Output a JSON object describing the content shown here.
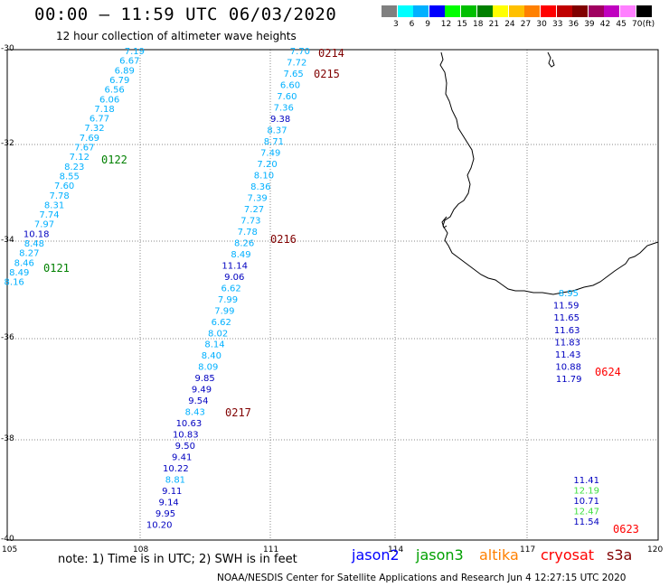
{
  "header": {
    "title": "00:00 – 11:59 UTC 06/03/2020",
    "subtitle": "12 hour collection of altimeter wave heights"
  },
  "legend": {
    "unit": "(ft)",
    "colors": [
      "#808080",
      "#00ffff",
      "#00b0ff",
      "#0000ff",
      "#00ff00",
      "#00c000",
      "#008000",
      "#ffff00",
      "#ffc000",
      "#ff8000",
      "#ff0000",
      "#c00000",
      "#800000",
      "#a00060",
      "#c000c0",
      "#ff80ff",
      "#000000"
    ],
    "labels": [
      "3",
      "6",
      "9",
      "12",
      "15",
      "18",
      "21",
      "24",
      "27",
      "30",
      "33",
      "36",
      "39",
      "42",
      "45",
      "70"
    ]
  },
  "axes": {
    "lon_labels": [
      "105",
      "108",
      "111",
      "114",
      "117",
      "120"
    ],
    "lat_labels": [
      "-30",
      "-32",
      "-34",
      "-36",
      "-38",
      "-40"
    ]
  },
  "passes": [
    {
      "id": "0214",
      "color": "#800000"
    },
    {
      "id": "0215",
      "color": "#800000"
    },
    {
      "id": "0216",
      "color": "#800000"
    },
    {
      "id": "0217",
      "color": "#800000"
    },
    {
      "id": "0122",
      "color": "#008000"
    },
    {
      "id": "0121",
      "color": "#008000"
    },
    {
      "id": "0624",
      "color": "#ff0000"
    },
    {
      "id": "0623",
      "color": "#ff0000"
    }
  ],
  "tracks": [
    {
      "name": "track-0122-0121",
      "values": [
        {
          "v": "7.19",
          "c": "#00b0ff"
        },
        {
          "v": "6.67",
          "c": "#00b0ff"
        },
        {
          "v": "6.89",
          "c": "#00b0ff"
        },
        {
          "v": "6.79",
          "c": "#00b0ff"
        },
        {
          "v": "6.56",
          "c": "#00b0ff"
        },
        {
          "v": "6.06",
          "c": "#00b0ff"
        },
        {
          "v": "7.18",
          "c": "#00b0ff"
        },
        {
          "v": "6.77",
          "c": "#00b0ff"
        },
        {
          "v": "7.32",
          "c": "#00b0ff"
        },
        {
          "v": "7.69",
          "c": "#00b0ff"
        },
        {
          "v": "7.67",
          "c": "#00b0ff"
        },
        {
          "v": "7.12",
          "c": "#00b0ff"
        },
        {
          "v": "8.23",
          "c": "#00b0ff"
        },
        {
          "v": "8.55",
          "c": "#00b0ff"
        },
        {
          "v": "7.60",
          "c": "#00b0ff"
        },
        {
          "v": "7.78",
          "c": "#00b0ff"
        },
        {
          "v": "8.31",
          "c": "#00b0ff"
        },
        {
          "v": "7.74",
          "c": "#00b0ff"
        },
        {
          "v": "7.97",
          "c": "#00b0ff"
        },
        {
          "v": "10.18",
          "c": "#0000c0"
        },
        {
          "v": "8.48",
          "c": "#00b0ff"
        },
        {
          "v": "8.27",
          "c": "#00b0ff"
        },
        {
          "v": "8.46",
          "c": "#00b0ff"
        },
        {
          "v": "8.49",
          "c": "#00b0ff"
        },
        {
          "v": "8.16",
          "c": "#00b0ff"
        }
      ]
    },
    {
      "name": "track-0214-0217",
      "values": [
        {
          "v": "7.70",
          "c": "#00b0ff"
        },
        {
          "v": "7.72",
          "c": "#00b0ff"
        },
        {
          "v": "7.65",
          "c": "#00b0ff"
        },
        {
          "v": "6.60",
          "c": "#00b0ff"
        },
        {
          "v": "7.60",
          "c": "#00b0ff"
        },
        {
          "v": "7.36",
          "c": "#00b0ff"
        },
        {
          "v": "9.38",
          "c": "#0000c0"
        },
        {
          "v": "8.37",
          "c": "#00b0ff"
        },
        {
          "v": "8.71",
          "c": "#00b0ff"
        },
        {
          "v": "7.49",
          "c": "#00b0ff"
        },
        {
          "v": "7.20",
          "c": "#00b0ff"
        },
        {
          "v": "8.10",
          "c": "#00b0ff"
        },
        {
          "v": "8.36",
          "c": "#00b0ff"
        },
        {
          "v": "7.39",
          "c": "#00b0ff"
        },
        {
          "v": "7.27",
          "c": "#00b0ff"
        },
        {
          "v": "7.73",
          "c": "#00b0ff"
        },
        {
          "v": "7.78",
          "c": "#00b0ff"
        },
        {
          "v": "8.26",
          "c": "#00b0ff"
        },
        {
          "v": "8.49",
          "c": "#00b0ff"
        },
        {
          "v": "11.14",
          "c": "#0000c0"
        },
        {
          "v": "9.06",
          "c": "#0000c0"
        },
        {
          "v": "6.62",
          "c": "#00b0ff"
        },
        {
          "v": "7.99",
          "c": "#00b0ff"
        },
        {
          "v": "7.99",
          "c": "#00b0ff"
        },
        {
          "v": "6.62",
          "c": "#00b0ff"
        },
        {
          "v": "8.02",
          "c": "#00b0ff"
        },
        {
          "v": "8.14",
          "c": "#00b0ff"
        },
        {
          "v": "8.40",
          "c": "#00b0ff"
        },
        {
          "v": "8.09",
          "c": "#00b0ff"
        },
        {
          "v": "9.85",
          "c": "#0000c0"
        },
        {
          "v": "9.49",
          "c": "#0000c0"
        },
        {
          "v": "9.54",
          "c": "#0000c0"
        },
        {
          "v": "8.43",
          "c": "#00b0ff"
        },
        {
          "v": "10.63",
          "c": "#0000c0"
        },
        {
          "v": "10.83",
          "c": "#0000c0"
        },
        {
          "v": "9.50",
          "c": "#0000c0"
        },
        {
          "v": "9.41",
          "c": "#0000c0"
        },
        {
          "v": "10.22",
          "c": "#0000c0"
        },
        {
          "v": "8.81",
          "c": "#00b0ff"
        },
        {
          "v": "9.11",
          "c": "#0000c0"
        },
        {
          "v": "9.14",
          "c": "#0000c0"
        },
        {
          "v": "9.95",
          "c": "#0000c0"
        },
        {
          "v": "10.20",
          "c": "#0000c0"
        }
      ]
    },
    {
      "name": "track-0624",
      "values": [
        {
          "v": "8.95",
          "c": "#00b0ff"
        },
        {
          "v": "11.59",
          "c": "#0000c0"
        },
        {
          "v": "11.65",
          "c": "#0000c0"
        },
        {
          "v": "11.63",
          "c": "#0000c0"
        },
        {
          "v": "11.83",
          "c": "#0000c0"
        },
        {
          "v": "11.43",
          "c": "#0000c0"
        },
        {
          "v": "10.88",
          "c": "#0000c0"
        },
        {
          "v": "11.79",
          "c": "#0000c0"
        }
      ]
    },
    {
      "name": "track-0623",
      "values": [
        {
          "v": "11.41",
          "c": "#0000c0"
        },
        {
          "v": "12.19",
          "c": "#40e040"
        },
        {
          "v": "10.71",
          "c": "#0000c0"
        },
        {
          "v": "12.47",
          "c": "#40e040"
        },
        {
          "v": "11.54",
          "c": "#0000c0"
        }
      ]
    }
  ],
  "footer": {
    "note": "note:  1) Time is in UTC;  2) SWH is in feet",
    "satellites": [
      {
        "name": "jason2",
        "color": "#0000ff"
      },
      {
        "name": "jason3",
        "color": "#00a000"
      },
      {
        "name": "altika",
        "color": "#ff8000"
      },
      {
        "name": "cryosat",
        "color": "#ff0000"
      },
      {
        "name": "s3a",
        "color": "#800000"
      }
    ],
    "credit": "NOAA/NESDIS Center for Satellite Applications and Research    Jun  4 12:27:15 UTC 2020"
  }
}
